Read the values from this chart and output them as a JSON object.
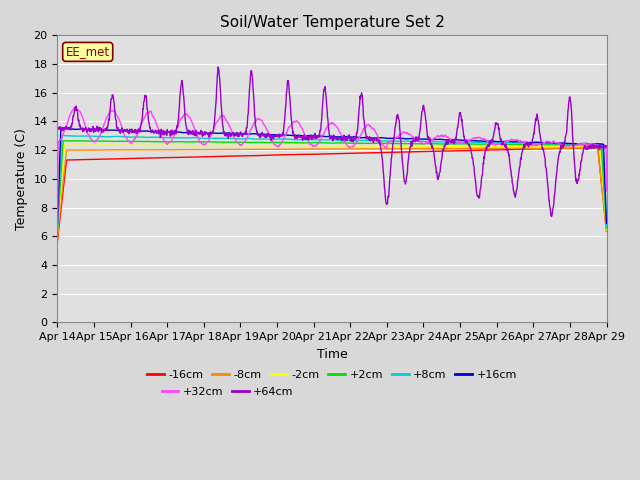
{
  "title": "Soil/Water Temperature Set 2",
  "xlabel": "Time",
  "ylabel": "Temperature (C)",
  "ylim": [
    0,
    20
  ],
  "yticks": [
    0,
    2,
    4,
    6,
    8,
    10,
    12,
    14,
    16,
    18,
    20
  ],
  "n_days": 15,
  "x_tick_labels": [
    "Apr 14",
    "Apr 15",
    "Apr 16",
    "Apr 17",
    "Apr 18",
    "Apr 19",
    "Apr 20",
    "Apr 21",
    "Apr 22",
    "Apr 23",
    "Apr 24",
    "Apr 25",
    "Apr 26",
    "Apr 27",
    "Apr 28",
    "Apr 29"
  ],
  "background_color": "#d8d8d8",
  "plot_bg_color": "#e0e0e0",
  "grid_color": "#c0c0c0",
  "annotation_text": "EE_met",
  "annotation_color": "#800000",
  "annotation_bg": "#ffffa0",
  "series": [
    {
      "label": "-16cm",
      "color": "#ff0000"
    },
    {
      "label": "-8cm",
      "color": "#ff8800"
    },
    {
      "label": "-2cm",
      "color": "#ffff00"
    },
    {
      "label": "+2cm",
      "color": "#00dd00"
    },
    {
      "label": "+8cm",
      "color": "#00cccc"
    },
    {
      "label": "+16cm",
      "color": "#0000cc"
    },
    {
      "label": "+32cm",
      "color": "#ff44ff"
    },
    {
      "label": "+64cm",
      "color": "#9900cc"
    }
  ]
}
